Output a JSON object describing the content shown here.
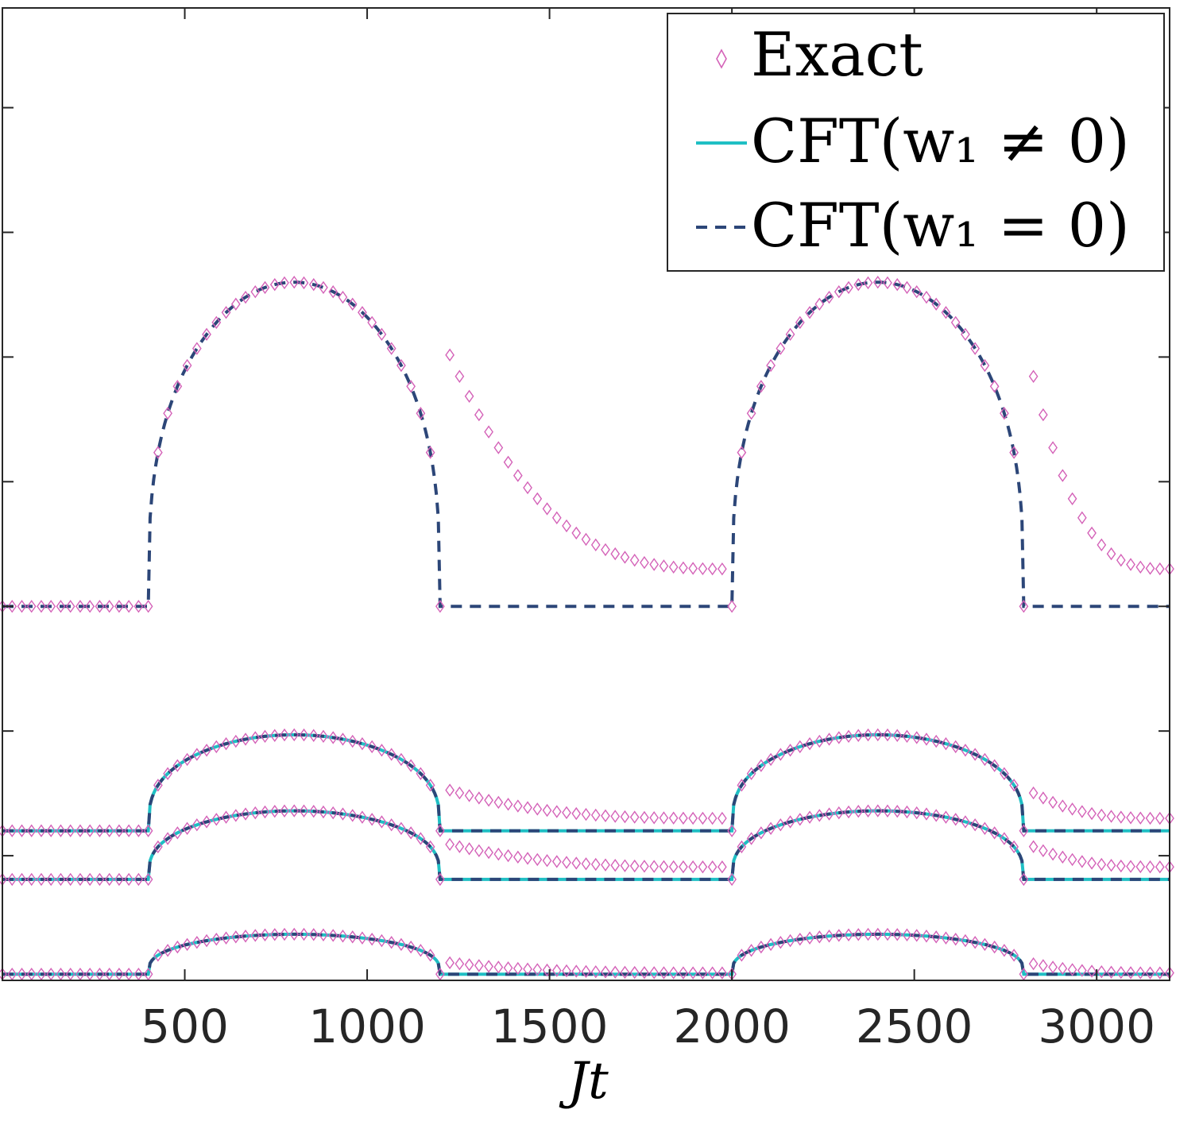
{
  "chart_data": {
    "type": "line",
    "title": "",
    "xlabel": "Jt",
    "ylabel": "",
    "xlim": [
      0,
      3200
    ],
    "ylim": [
      0,
      7.8
    ],
    "xticks": [
      500,
      1000,
      1500,
      2000,
      2500,
      3000
    ],
    "xtick_labels": [
      "500",
      "1000",
      "1500",
      "2000",
      "2500",
      "3000"
    ],
    "yticks": [
      1,
      2,
      3,
      4,
      5,
      6,
      7
    ],
    "ytick_labels": [],
    "legend": {
      "position": "top-right",
      "entries": [
        {
          "label": "Exact",
          "marker": "diamond",
          "color": "#d462b8"
        },
        {
          "label": "CFT(w₁ ≠ 0)",
          "line": "solid",
          "color": "#1fbfc4"
        },
        {
          "label": "CFT(w₁ = 0)",
          "line": "dashed",
          "color": "#2c4678"
        }
      ]
    },
    "quench_windows": [
      [
        400,
        1200
      ],
      [
        2000,
        2800
      ]
    ],
    "curves": [
      {
        "name": "upper",
        "baseline": 3.0,
        "plateau_height": 2.6,
        "exact_tail_start": 2.2,
        "exact_tail_end": 0.3,
        "series": [
          "Exact",
          "CFT(w₁ = 0)"
        ]
      },
      {
        "name": "middle-high",
        "baseline": 1.2,
        "plateau_height": 0.77,
        "exact_tail_start": 0.35,
        "exact_tail_end": 0.1,
        "series": [
          "Exact",
          "CFT(w₁ ≠ 0)",
          "CFT(w₁ = 0)"
        ]
      },
      {
        "name": "middle-low",
        "baseline": 0.81,
        "plateau_height": 0.55,
        "exact_tail_start": 0.3,
        "exact_tail_end": 0.1,
        "series": [
          "Exact",
          "CFT(w₁ ≠ 0)",
          "CFT(w₁ = 0)"
        ]
      },
      {
        "name": "lower",
        "baseline": 0.05,
        "plateau_height": 0.32,
        "exact_tail_start": 0.1,
        "exact_tail_end": 0.01,
        "series": [
          "Exact",
          "CFT(w₁ ≠ 0)",
          "CFT(w₁ = 0)"
        ]
      }
    ]
  }
}
